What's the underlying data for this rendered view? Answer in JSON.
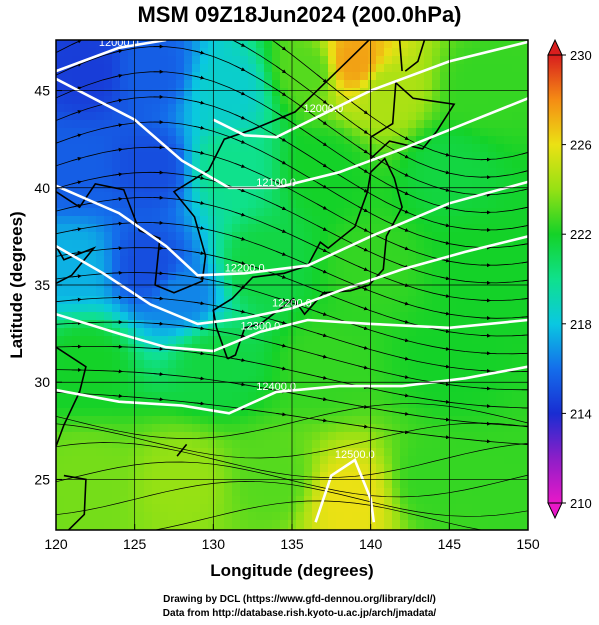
{
  "title": "MSM 09Z18Jun2024 (200.0hPa)",
  "x_axis": {
    "label": "Longitude (degrees)",
    "ticks": [
      "120",
      "125",
      "130",
      "135",
      "140",
      "145",
      "150"
    ]
  },
  "y_axis": {
    "label": "Latitude  (degrees)",
    "ticks": [
      "25",
      "30",
      "35",
      "40",
      "45"
    ]
  },
  "colorbar": {
    "ticks": [
      "210",
      "214",
      "218",
      "222",
      "226",
      "230"
    ],
    "min": 210,
    "max": 230
  },
  "contour_labels": [
    "12000.0",
    "12100.0",
    "12200.0",
    "12300.0",
    "12400.0",
    "12500.0"
  ],
  "credits": [
    "Drawing by DCL (https://www.gfd-dennou.org/library/dcl/)",
    "Data from http://database.rish.kyoto-u.ac.jp/arch/jmadata/"
  ],
  "chart_data": {
    "type": "heatmap",
    "title": "MSM 09Z18Jun2024 (200.0hPa)",
    "xlabel": "Longitude (degrees)",
    "ylabel": "Latitude  (degrees)",
    "xlim": [
      120,
      150
    ],
    "ylim": [
      22.4,
      47.6
    ],
    "color_range": [
      210,
      230
    ],
    "contours": [
      {
        "label": "12000.0",
        "points": [
          [
            120,
            46.0
          ],
          [
            124,
            47.2
          ],
          [
            127,
            47.6
          ]
        ]
      },
      {
        "label": "12000.0",
        "points": [
          [
            130,
            43.5
          ],
          [
            132,
            42.7
          ],
          [
            134,
            42.6
          ],
          [
            137,
            43.8
          ],
          [
            140,
            45.0
          ],
          [
            145,
            46.5
          ],
          [
            150,
            47.5
          ]
        ]
      },
      {
        "label": "12100.0",
        "points": [
          [
            120,
            45.6
          ],
          [
            125,
            43.5
          ],
          [
            128,
            41.4
          ],
          [
            131,
            40.0
          ],
          [
            134,
            40.0
          ],
          [
            138,
            40.8
          ],
          [
            142,
            42.0
          ],
          [
            146,
            43.3
          ],
          [
            150,
            44.6
          ]
        ]
      },
      {
        "label": "12200.0",
        "points": [
          [
            120,
            40.1
          ],
          [
            124,
            38.7
          ],
          [
            127,
            37.0
          ],
          [
            129,
            35.5
          ],
          [
            132,
            35.6
          ],
          [
            136,
            36.0
          ],
          [
            140,
            37.5
          ],
          [
            145,
            39.2
          ],
          [
            150,
            40.3
          ]
        ]
      },
      {
        "label": "12200.0",
        "points": [
          [
            120,
            37.0
          ],
          [
            123,
            35.6
          ],
          [
            126,
            34.0
          ],
          [
            129,
            33.0
          ],
          [
            132,
            33.3
          ],
          [
            135,
            33.8
          ],
          [
            138,
            34.7
          ],
          [
            142,
            35.8
          ],
          [
            146,
            36.7
          ],
          [
            150,
            37.5
          ]
        ]
      },
      {
        "label": "12300.0",
        "points": [
          [
            120,
            33.5
          ],
          [
            124,
            32.5
          ],
          [
            127,
            31.8
          ],
          [
            130,
            31.6
          ],
          [
            133,
            32.6
          ],
          [
            136,
            33.2
          ],
          [
            140,
            33.0
          ],
          [
            145,
            32.8
          ],
          [
            150,
            33.2
          ]
        ]
      },
      {
        "label": "12400.0",
        "points": [
          [
            120,
            29.6
          ],
          [
            124,
            29.0
          ],
          [
            128,
            28.8
          ],
          [
            131,
            28.4
          ],
          [
            134,
            29.5
          ],
          [
            138,
            29.8
          ],
          [
            142,
            29.8
          ],
          [
            146,
            30.2
          ],
          [
            150,
            30.8
          ]
        ]
      },
      {
        "label": "12500.0",
        "points": [
          [
            136.5,
            22.8
          ],
          [
            137.5,
            25.2
          ],
          [
            139,
            26.0
          ],
          [
            140,
            24.0
          ],
          [
            140.2,
            22.8
          ]
        ]
      }
    ],
    "temperature_field": {
      "description": "200 hPa temperature (shaded)",
      "points": [
        {
          "lon": 122,
          "lat": 46,
          "value": 214.5
        },
        {
          "lon": 126,
          "lat": 46,
          "value": 215.5
        },
        {
          "lon": 131,
          "lat": 45,
          "value": 218.5
        },
        {
          "lon": 136,
          "lat": 46,
          "value": 223.0
        },
        {
          "lon": 139,
          "lat": 46.5,
          "value": 227.5
        },
        {
          "lon": 141,
          "lat": 45,
          "value": 224.5
        },
        {
          "lon": 147,
          "lat": 45,
          "value": 222.5
        },
        {
          "lon": 121,
          "lat": 41,
          "value": 215.5
        },
        {
          "lon": 126,
          "lat": 41,
          "value": 215.0
        },
        {
          "lon": 131,
          "lat": 41,
          "value": 220.0
        },
        {
          "lon": 137,
          "lat": 41,
          "value": 222.0
        },
        {
          "lon": 145,
          "lat": 41,
          "value": 221.5
        },
        {
          "lon": 121,
          "lat": 36,
          "value": 217.5
        },
        {
          "lon": 126,
          "lat": 36,
          "value": 215.0
        },
        {
          "lon": 128,
          "lat": 34.5,
          "value": 216.5
        },
        {
          "lon": 133,
          "lat": 36,
          "value": 221.5
        },
        {
          "lon": 140,
          "lat": 36,
          "value": 222.5
        },
        {
          "lon": 147,
          "lat": 36,
          "value": 222.0
        },
        {
          "lon": 122,
          "lat": 31,
          "value": 222.0
        },
        {
          "lon": 130,
          "lat": 31,
          "value": 221.5
        },
        {
          "lon": 137,
          "lat": 31,
          "value": 222.5
        },
        {
          "lon": 145,
          "lat": 31,
          "value": 222.0
        },
        {
          "lon": 122,
          "lat": 25,
          "value": 223.5
        },
        {
          "lon": 128,
          "lat": 25,
          "value": 224.0
        },
        {
          "lon": 134,
          "lat": 25,
          "value": 223.0
        },
        {
          "lon": 138.5,
          "lat": 24,
          "value": 226.0
        },
        {
          "lon": 144,
          "lat": 25,
          "value": 222.5
        },
        {
          "lon": 149,
          "lat": 25,
          "value": 222.5
        }
      ]
    },
    "wind_streamlines": "westerly jet over northern half, anticyclonic/weak flow south of 28N",
    "colors": {
      "contour": "#ffffff",
      "coastline": "#000000",
      "grid": "#000000"
    }
  }
}
